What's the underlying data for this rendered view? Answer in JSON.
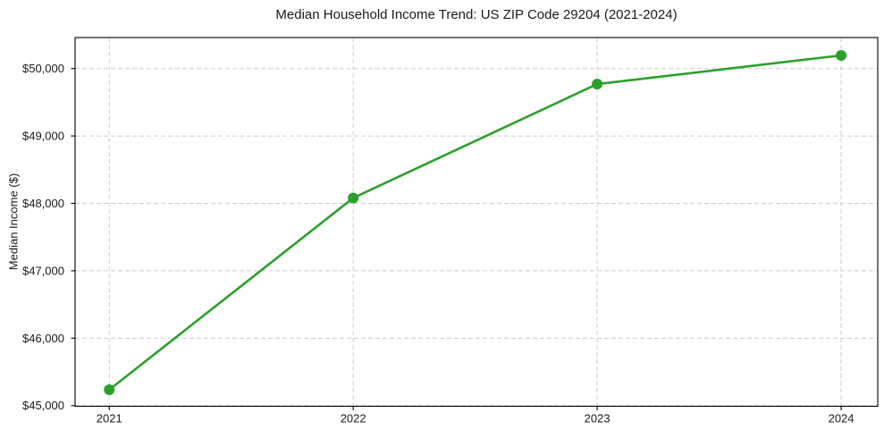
{
  "page": {
    "background": "#ffffff"
  },
  "chart": {
    "title": "Median Household Income Trend: US ZIP Code 29204 (2021-2024)",
    "ylabel": "Median Income ($)"
  },
  "chart_data": {
    "type": "line",
    "title": "Median Household Income Trend: US ZIP Code 29204 (2021-2024)",
    "xlabel": "",
    "ylabel": "Median Income ($)",
    "x": [
      2021,
      2022,
      2023,
      2024
    ],
    "xtick_labels": [
      "2021",
      "2022",
      "2023",
      "2024"
    ],
    "yticks": [
      45000,
      46000,
      47000,
      48000,
      49000,
      50000
    ],
    "ytick_labels": [
      "$45,000",
      "$46,000",
      "$47,000",
      "$48,000",
      "$49,000",
      "$50,000"
    ],
    "xlim": [
      2020.86,
      2024.15
    ],
    "ylim": [
      44990,
      50460
    ],
    "grid": true,
    "grid_style": "dashed",
    "grid_color": "#cccccc",
    "axis_color": "#000000",
    "text_color": "#1a1a1a",
    "legend": false,
    "series": [
      {
        "name": "Median Household Income",
        "color": "#2ca02c",
        "marker": "circle",
        "values": [
          45235,
          48080,
          49770,
          50195
        ]
      }
    ]
  }
}
